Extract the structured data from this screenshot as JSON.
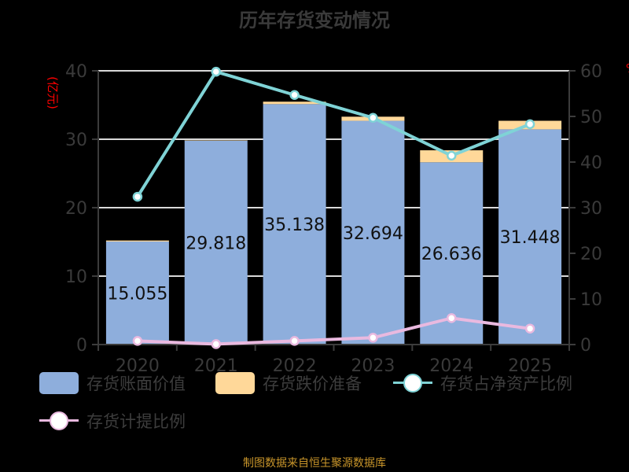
{
  "title": "历年存货变动情况",
  "footer": "制图数据来自恒生聚源数据库",
  "left_axis_label": "(亿元)",
  "right_axis_label": "%",
  "legend": [
    {
      "label": "存货账面价值",
      "type": "bar",
      "color": "#8eaedc"
    },
    {
      "label": "存货跌价准备",
      "type": "bar",
      "color": "#ffd899"
    },
    {
      "label": "存货占净资产比例",
      "type": "line",
      "color": "#7fd3d6"
    },
    {
      "label": "存货计提比例",
      "type": "line",
      "color": "#e9b9df"
    }
  ],
  "chart_data": {
    "type": "bar",
    "title": "历年存货变动情况",
    "categories": [
      "2020",
      "2021",
      "2022",
      "2023",
      "2024",
      "2025"
    ],
    "xlabel": "",
    "ylabel": "(亿元)",
    "ylabel_right": "%",
    "ylim": [
      0,
      40
    ],
    "ylim_right": [
      0,
      60
    ],
    "yticks": [
      0,
      10,
      20,
      30,
      40
    ],
    "yticks_right": [
      0,
      10,
      20,
      30,
      40,
      50,
      60
    ],
    "grid": true,
    "legend_position": "bottom",
    "series": [
      {
        "name": "存货账面价值",
        "type": "bar",
        "stack": "inv",
        "axis": "left",
        "color": "#8eaedc",
        "values": [
          15.055,
          29.818,
          35.138,
          32.694,
          26.636,
          31.448
        ],
        "labels": [
          "15.055",
          "29.818",
          "35.138",
          "32.694",
          "26.636",
          "31.448"
        ]
      },
      {
        "name": "存货跌价准备",
        "type": "bar",
        "stack": "inv",
        "axis": "left",
        "color": "#ffd899",
        "values": [
          0.15,
          0.02,
          0.35,
          0.6,
          1.75,
          1.25
        ]
      },
      {
        "name": "存货占净资产比例",
        "type": "line",
        "axis": "right",
        "color": "#7fd3d6",
        "values": [
          32.4,
          59.8,
          54.7,
          49.7,
          41.4,
          48.3
        ]
      },
      {
        "name": "存货计提比例",
        "type": "line",
        "axis": "right",
        "color": "#e9b9df",
        "values": [
          0.8,
          0.1,
          0.8,
          1.5,
          5.8,
          3.5
        ]
      }
    ]
  }
}
